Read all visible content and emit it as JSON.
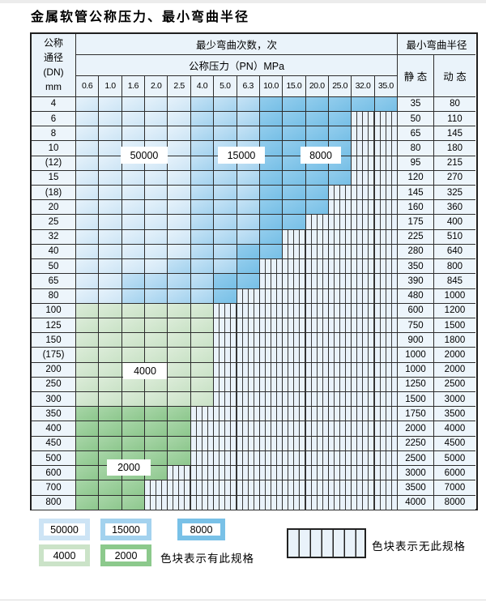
{
  "title": "金属软管公称压力、最小弯曲半径",
  "chart_data": {
    "type": "heatmap",
    "title": "金属软管公称压力、最小弯曲半径",
    "bend_times_header": "最少弯曲次数，次",
    "pressure_header": "公称压力（PN）MPa",
    "dn_header_lines": [
      "公称",
      "通径",
      "(DN)",
      "mm"
    ],
    "radius_header": "最小弯曲半径",
    "static_header": "静 态",
    "dynamic_header": "动 态",
    "pn_columns": [
      "0.6",
      "1.0",
      "1.6",
      "2.0",
      "2.5",
      "4.0",
      "5.0",
      "6.3",
      "10.0",
      "15.0",
      "20.0",
      "25.0",
      "32.0",
      "35.0"
    ],
    "cycle_levels": [
      50000,
      15000,
      8000,
      4000,
      2000
    ],
    "rows": [
      {
        "dn": "4",
        "cycles": [
          50000,
          50000,
          50000,
          50000,
          50000,
          15000,
          15000,
          15000,
          8000,
          8000,
          8000,
          8000,
          8000,
          8000
        ],
        "static": "35",
        "dynamic": "80"
      },
      {
        "dn": "6",
        "cycles": [
          50000,
          50000,
          50000,
          50000,
          50000,
          15000,
          15000,
          15000,
          8000,
          8000,
          8000,
          8000,
          null,
          null
        ],
        "static": "50",
        "dynamic": "110"
      },
      {
        "dn": "8",
        "cycles": [
          50000,
          50000,
          50000,
          50000,
          50000,
          15000,
          15000,
          15000,
          8000,
          8000,
          8000,
          8000,
          null,
          null
        ],
        "static": "65",
        "dynamic": "145"
      },
      {
        "dn": "10",
        "cycles": [
          50000,
          50000,
          50000,
          50000,
          50000,
          15000,
          15000,
          15000,
          8000,
          8000,
          8000,
          8000,
          null,
          null
        ],
        "static": "80",
        "dynamic": "180"
      },
      {
        "dn": "(12)",
        "cycles": [
          50000,
          50000,
          50000,
          50000,
          50000,
          15000,
          15000,
          15000,
          8000,
          8000,
          8000,
          8000,
          null,
          null
        ],
        "static": "95",
        "dynamic": "215"
      },
      {
        "dn": "15",
        "cycles": [
          50000,
          50000,
          50000,
          50000,
          50000,
          15000,
          15000,
          15000,
          8000,
          8000,
          8000,
          8000,
          null,
          null
        ],
        "static": "120",
        "dynamic": "270"
      },
      {
        "dn": "(18)",
        "cycles": [
          50000,
          50000,
          50000,
          50000,
          50000,
          15000,
          15000,
          15000,
          8000,
          8000,
          8000,
          null,
          null,
          null
        ],
        "static": "145",
        "dynamic": "325"
      },
      {
        "dn": "20",
        "cycles": [
          50000,
          50000,
          50000,
          50000,
          50000,
          15000,
          15000,
          15000,
          8000,
          8000,
          8000,
          null,
          null,
          null
        ],
        "static": "160",
        "dynamic": "360"
      },
      {
        "dn": "25",
        "cycles": [
          50000,
          50000,
          50000,
          50000,
          50000,
          15000,
          15000,
          15000,
          8000,
          8000,
          null,
          null,
          null,
          null
        ],
        "static": "175",
        "dynamic": "400"
      },
      {
        "dn": "32",
        "cycles": [
          50000,
          50000,
          50000,
          50000,
          50000,
          15000,
          15000,
          15000,
          8000,
          null,
          null,
          null,
          null,
          null
        ],
        "static": "225",
        "dynamic": "510"
      },
      {
        "dn": "40",
        "cycles": [
          50000,
          50000,
          50000,
          50000,
          50000,
          15000,
          15000,
          8000,
          8000,
          null,
          null,
          null,
          null,
          null
        ],
        "static": "280",
        "dynamic": "640"
      },
      {
        "dn": "50",
        "cycles": [
          50000,
          50000,
          50000,
          50000,
          15000,
          15000,
          15000,
          8000,
          null,
          null,
          null,
          null,
          null,
          null
        ],
        "static": "350",
        "dynamic": "800"
      },
      {
        "dn": "65",
        "cycles": [
          50000,
          50000,
          15000,
          15000,
          15000,
          15000,
          8000,
          8000,
          null,
          null,
          null,
          null,
          null,
          null
        ],
        "static": "390",
        "dynamic": "845"
      },
      {
        "dn": "80",
        "cycles": [
          50000,
          50000,
          15000,
          15000,
          15000,
          15000,
          8000,
          null,
          null,
          null,
          null,
          null,
          null,
          null
        ],
        "static": "480",
        "dynamic": "1000"
      },
      {
        "dn": "100",
        "cycles": [
          4000,
          4000,
          4000,
          4000,
          4000,
          4000,
          null,
          null,
          null,
          null,
          null,
          null,
          null,
          null
        ],
        "static": "600",
        "dynamic": "1200"
      },
      {
        "dn": "125",
        "cycles": [
          4000,
          4000,
          4000,
          4000,
          4000,
          4000,
          null,
          null,
          null,
          null,
          null,
          null,
          null,
          null
        ],
        "static": "750",
        "dynamic": "1500"
      },
      {
        "dn": "150",
        "cycles": [
          4000,
          4000,
          4000,
          4000,
          4000,
          4000,
          null,
          null,
          null,
          null,
          null,
          null,
          null,
          null
        ],
        "static": "900",
        "dynamic": "1800"
      },
      {
        "dn": "(175)",
        "cycles": [
          4000,
          4000,
          4000,
          4000,
          4000,
          4000,
          null,
          null,
          null,
          null,
          null,
          null,
          null,
          null
        ],
        "static": "1000",
        "dynamic": "2000"
      },
      {
        "dn": "200",
        "cycles": [
          4000,
          4000,
          4000,
          4000,
          4000,
          4000,
          null,
          null,
          null,
          null,
          null,
          null,
          null,
          null
        ],
        "static": "1000",
        "dynamic": "2000"
      },
      {
        "dn": "250",
        "cycles": [
          4000,
          4000,
          4000,
          4000,
          4000,
          4000,
          null,
          null,
          null,
          null,
          null,
          null,
          null,
          null
        ],
        "static": "1250",
        "dynamic": "2500"
      },
      {
        "dn": "300",
        "cycles": [
          4000,
          4000,
          4000,
          4000,
          4000,
          4000,
          null,
          null,
          null,
          null,
          null,
          null,
          null,
          null
        ],
        "static": "1500",
        "dynamic": "3000"
      },
      {
        "dn": "350",
        "cycles": [
          2000,
          2000,
          2000,
          2000,
          2000,
          null,
          null,
          null,
          null,
          null,
          null,
          null,
          null,
          null
        ],
        "static": "1750",
        "dynamic": "3500"
      },
      {
        "dn": "400",
        "cycles": [
          2000,
          2000,
          2000,
          2000,
          2000,
          null,
          null,
          null,
          null,
          null,
          null,
          null,
          null,
          null
        ],
        "static": "2000",
        "dynamic": "4000"
      },
      {
        "dn": "450",
        "cycles": [
          2000,
          2000,
          2000,
          2000,
          2000,
          null,
          null,
          null,
          null,
          null,
          null,
          null,
          null,
          null
        ],
        "static": "2250",
        "dynamic": "4500"
      },
      {
        "dn": "500",
        "cycles": [
          2000,
          2000,
          2000,
          2000,
          2000,
          null,
          null,
          null,
          null,
          null,
          null,
          null,
          null,
          null
        ],
        "static": "2500",
        "dynamic": "5000"
      },
      {
        "dn": "600",
        "cycles": [
          2000,
          2000,
          2000,
          2000,
          null,
          null,
          null,
          null,
          null,
          null,
          null,
          null,
          null,
          null
        ],
        "static": "3000",
        "dynamic": "6000"
      },
      {
        "dn": "700",
        "cycles": [
          2000,
          2000,
          2000,
          null,
          null,
          null,
          null,
          null,
          null,
          null,
          null,
          null,
          null,
          null
        ],
        "static": "3500",
        "dynamic": "7000"
      },
      {
        "dn": "800",
        "cycles": [
          2000,
          2000,
          2000,
          null,
          null,
          null,
          null,
          null,
          null,
          null,
          null,
          null,
          null,
          null
        ],
        "static": "4000",
        "dynamic": "8000"
      }
    ]
  },
  "overlays": {
    "b50000": "50000",
    "b15000": "15000",
    "b8000": "8000",
    "b4000": "4000",
    "b2000": "2000"
  },
  "legend": {
    "items": [
      {
        "label": "50000",
        "color": "#cde4f5"
      },
      {
        "label": "15000",
        "color": "#a3d2ee"
      },
      {
        "label": "8000",
        "color": "#79c1e7"
      },
      {
        "label": "4000",
        "color": "#cbe3c8"
      },
      {
        "label": "2000",
        "color": "#8cc98c"
      }
    ],
    "has_spec_text": "色块表示有此规格",
    "no_spec_text": "色块表示无此规格"
  },
  "colors": {
    "blue_50000": "#cde5f5",
    "blue_15000": "#a3d2ee",
    "blue_8000": "#76bfe6",
    "green_4000": "#c9e2c6",
    "green_2000": "#8dc78d",
    "hatch_bg": "#e9f2fa",
    "header_bg": "#eaf3fa",
    "grid_line": "#2d2d2d"
  }
}
